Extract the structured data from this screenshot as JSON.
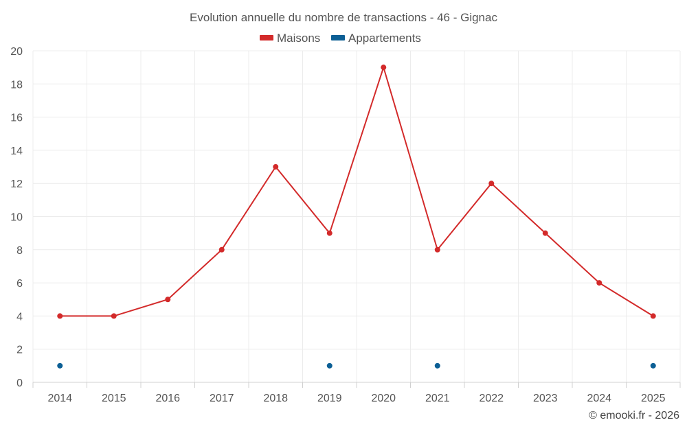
{
  "chart_data": {
    "type": "line",
    "title": "Evolution annuelle du nombre de transactions - 46 - Gignac",
    "categories": [
      "2014",
      "2015",
      "2016",
      "2017",
      "2018",
      "2019",
      "2020",
      "2021",
      "2022",
      "2023",
      "2024",
      "2025"
    ],
    "ylim": [
      0,
      20
    ],
    "yticks": [
      0,
      2,
      4,
      6,
      8,
      10,
      12,
      14,
      16,
      18,
      20
    ],
    "grid": true,
    "legend_position": "top-center",
    "series": [
      {
        "name": "Maisons",
        "color": "#d32a2a",
        "style": "line+markers",
        "values": [
          4,
          4,
          5,
          8,
          13,
          9,
          19,
          8,
          12,
          9,
          6,
          4
        ]
      },
      {
        "name": "Appartements",
        "color": "#0c5f95",
        "style": "markers",
        "values": [
          1,
          null,
          null,
          null,
          null,
          1,
          null,
          1,
          null,
          null,
          null,
          1
        ]
      }
    ],
    "xlabel": "",
    "ylabel": ""
  },
  "credit": "© emooki.fr - 2026"
}
